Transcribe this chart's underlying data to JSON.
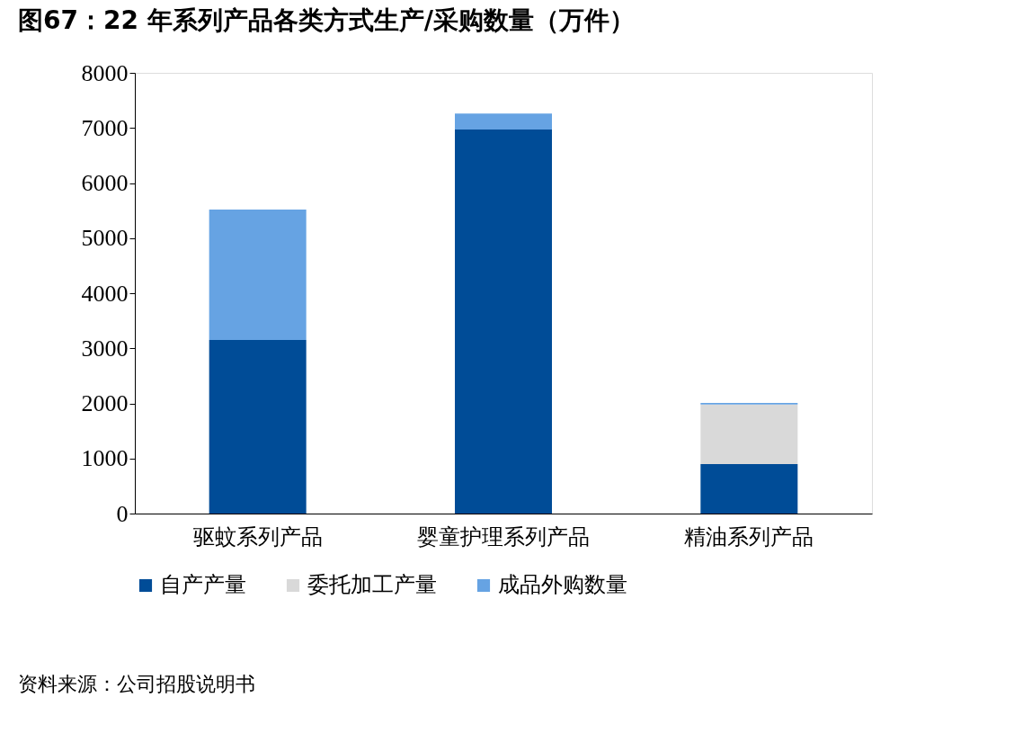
{
  "chart_data": {
    "type": "bar",
    "title": "图67：22 年系列产品各类方式生产/采购数量（万件）",
    "categories": [
      "驱蚊系列产品",
      "婴童护理系列产品",
      "精油系列产品"
    ],
    "stacked": true,
    "series": [
      {
        "name": "自产产量",
        "color": "#004c97",
        "values": [
          3150,
          6970,
          900
        ]
      },
      {
        "name": "委托加工产量",
        "color": "#d9d9d9",
        "values": [
          0,
          0,
          1080
        ]
      },
      {
        "name": "成品外购数量",
        "color": "#66a3e3",
        "values": [
          2370,
          290,
          30
        ]
      }
    ],
    "ylim": [
      0,
      8000
    ],
    "yticks": [
      0,
      1000,
      2000,
      3000,
      4000,
      5000,
      6000,
      7000,
      8000
    ],
    "grid": false,
    "legend": "bottom",
    "annotations": [
      "资料来源：公司招股说明书"
    ]
  }
}
